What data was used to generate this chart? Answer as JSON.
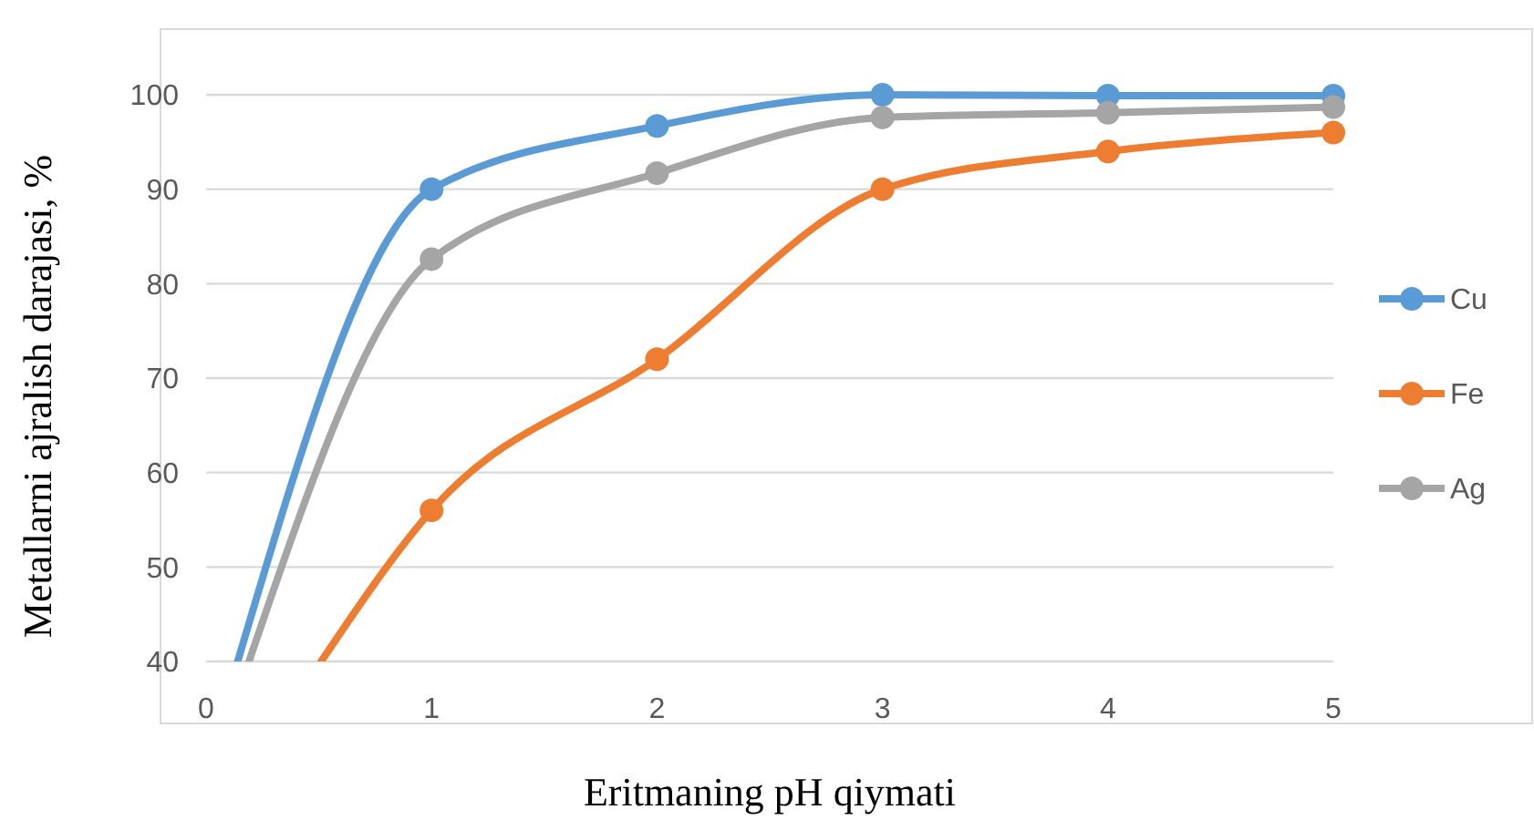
{
  "chart_data": {
    "type": "line",
    "xlabel": "Eritmaning pH qiymati",
    "ylabel": "Metallarni ajralish darajasi, %",
    "xlim": [
      0,
      5
    ],
    "xticks": [
      0,
      1,
      2,
      3,
      4,
      5
    ],
    "ylim": [
      40,
      100
    ],
    "yticks": [
      40,
      50,
      60,
      70,
      80,
      90,
      100
    ],
    "grid": "y",
    "legend": "right",
    "marker": "circle",
    "line_style": "solid",
    "series": [
      {
        "name": "Cu",
        "color": "#5b9bd5",
        "x": [
          0.14,
          1,
          2,
          3,
          4,
          5
        ],
        "values": [
          40,
          90,
          96.7,
          100,
          99.9,
          99.9
        ]
      },
      {
        "name": "Fe",
        "color": "#ed7d31",
        "x": [
          0.51,
          1,
          2,
          3,
          4,
          5
        ],
        "values": [
          40,
          56,
          72,
          90,
          94,
          96
        ]
      },
      {
        "name": "Ag",
        "color": "#a5a5a5",
        "x": [
          0.19,
          1,
          2,
          3,
          4,
          5
        ],
        "values": [
          40,
          82.6,
          91.7,
          97.6,
          98.1,
          98.7
        ]
      }
    ]
  }
}
